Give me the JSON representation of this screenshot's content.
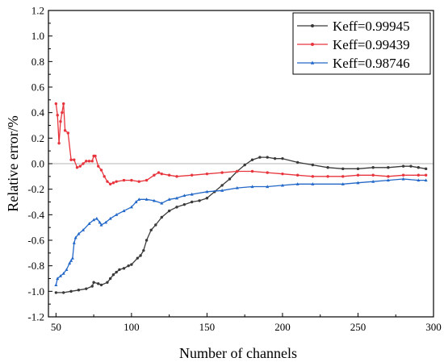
{
  "chart_data": {
    "type": "line",
    "xlabel": "Number of channels",
    "ylabel": "Relative error/%",
    "xlim": [
      45,
      300
    ],
    "ylim": [
      -1.2,
      1.2
    ],
    "xticks": [
      "50",
      "100",
      "150",
      "200",
      "250",
      "300"
    ],
    "xtick_values": [
      50,
      100,
      150,
      200,
      250,
      300
    ],
    "yticks": [
      "-1.2",
      "-1.0",
      "-0.8",
      "-0.6",
      "-0.4",
      "-0.2",
      "0.0",
      "0.2",
      "0.4",
      "0.6",
      "0.8",
      "1.0",
      "1.2"
    ],
    "ytick_values": [
      -1.2,
      -1.0,
      -0.8,
      -0.6,
      -0.4,
      -0.2,
      0.0,
      0.2,
      0.4,
      0.6,
      0.8,
      1.0,
      1.2
    ],
    "reference_line_y": 0.0,
    "legend_position": "top-right",
    "grid": false,
    "series": [
      {
        "name": "Keff=0.99945",
        "color": "#3a3a3a",
        "x": [
          50,
          55,
          60,
          65,
          70,
          74,
          75,
          78,
          80,
          84,
          86,
          88,
          90,
          92,
          95,
          98,
          100,
          104,
          106,
          108,
          110,
          113,
          116,
          120,
          125,
          130,
          135,
          140,
          145,
          150,
          155,
          160,
          165,
          170,
          175,
          180,
          185,
          190,
          195,
          200,
          210,
          220,
          230,
          240,
          250,
          260,
          270,
          280,
          285,
          290,
          295
        ],
        "y": [
          -1.01,
          -1.01,
          -1.0,
          -0.99,
          -0.98,
          -0.96,
          -0.93,
          -0.94,
          -0.95,
          -0.93,
          -0.9,
          -0.87,
          -0.85,
          -0.83,
          -0.82,
          -0.8,
          -0.79,
          -0.74,
          -0.72,
          -0.68,
          -0.6,
          -0.52,
          -0.48,
          -0.42,
          -0.37,
          -0.34,
          -0.32,
          -0.3,
          -0.29,
          -0.27,
          -0.22,
          -0.17,
          -0.12,
          -0.06,
          -0.01,
          0.03,
          0.05,
          0.05,
          0.04,
          0.04,
          0.01,
          -0.01,
          -0.03,
          -0.04,
          -0.04,
          -0.03,
          -0.03,
          -0.02,
          -0.02,
          -0.03,
          -0.04
        ]
      },
      {
        "name": "Keff=0.99439",
        "color": "#e8343c",
        "x": [
          50,
          51,
          52,
          53,
          54,
          55,
          56,
          58,
          60,
          62,
          64,
          66,
          68,
          70,
          72,
          74,
          75,
          76,
          78,
          80,
          82,
          84,
          86,
          88,
          90,
          95,
          100,
          105,
          110,
          115,
          118,
          120,
          125,
          130,
          140,
          150,
          160,
          170,
          180,
          190,
          200,
          210,
          220,
          230,
          240,
          250,
          260,
          270,
          280,
          290,
          295
        ],
        "y": [
          0.47,
          0.38,
          0.16,
          0.33,
          0.4,
          0.47,
          0.26,
          0.24,
          0.03,
          0.03,
          -0.03,
          -0.02,
          0.0,
          0.02,
          0.02,
          0.02,
          0.06,
          0.06,
          -0.02,
          -0.05,
          -0.1,
          -0.14,
          -0.16,
          -0.15,
          -0.14,
          -0.13,
          -0.13,
          -0.14,
          -0.13,
          -0.09,
          -0.07,
          -0.08,
          -0.09,
          -0.1,
          -0.09,
          -0.08,
          -0.07,
          -0.06,
          -0.06,
          -0.07,
          -0.08,
          -0.09,
          -0.1,
          -0.1,
          -0.1,
          -0.09,
          -0.09,
          -0.1,
          -0.09,
          -0.09,
          -0.09
        ]
      },
      {
        "name": "Keff=0.98746",
        "color": "#2368c8",
        "x": [
          50,
          51,
          53,
          55,
          57,
          59,
          60,
          61,
          62,
          63,
          65,
          68,
          72,
          75,
          77,
          79,
          80,
          83,
          86,
          90,
          95,
          100,
          103,
          105,
          110,
          115,
          120,
          125,
          130,
          135,
          140,
          150,
          160,
          170,
          180,
          190,
          200,
          210,
          220,
          240,
          250,
          260,
          270,
          280,
          290,
          295
        ],
        "y": [
          -0.95,
          -0.9,
          -0.88,
          -0.86,
          -0.83,
          -0.78,
          -0.76,
          -0.74,
          -0.62,
          -0.58,
          -0.55,
          -0.52,
          -0.47,
          -0.44,
          -0.43,
          -0.46,
          -0.48,
          -0.46,
          -0.43,
          -0.4,
          -0.37,
          -0.34,
          -0.3,
          -0.28,
          -0.28,
          -0.29,
          -0.31,
          -0.28,
          -0.27,
          -0.25,
          -0.24,
          -0.22,
          -0.21,
          -0.19,
          -0.18,
          -0.18,
          -0.17,
          -0.16,
          -0.16,
          -0.16,
          -0.15,
          -0.14,
          -0.13,
          -0.12,
          -0.13,
          -0.13
        ]
      }
    ]
  }
}
